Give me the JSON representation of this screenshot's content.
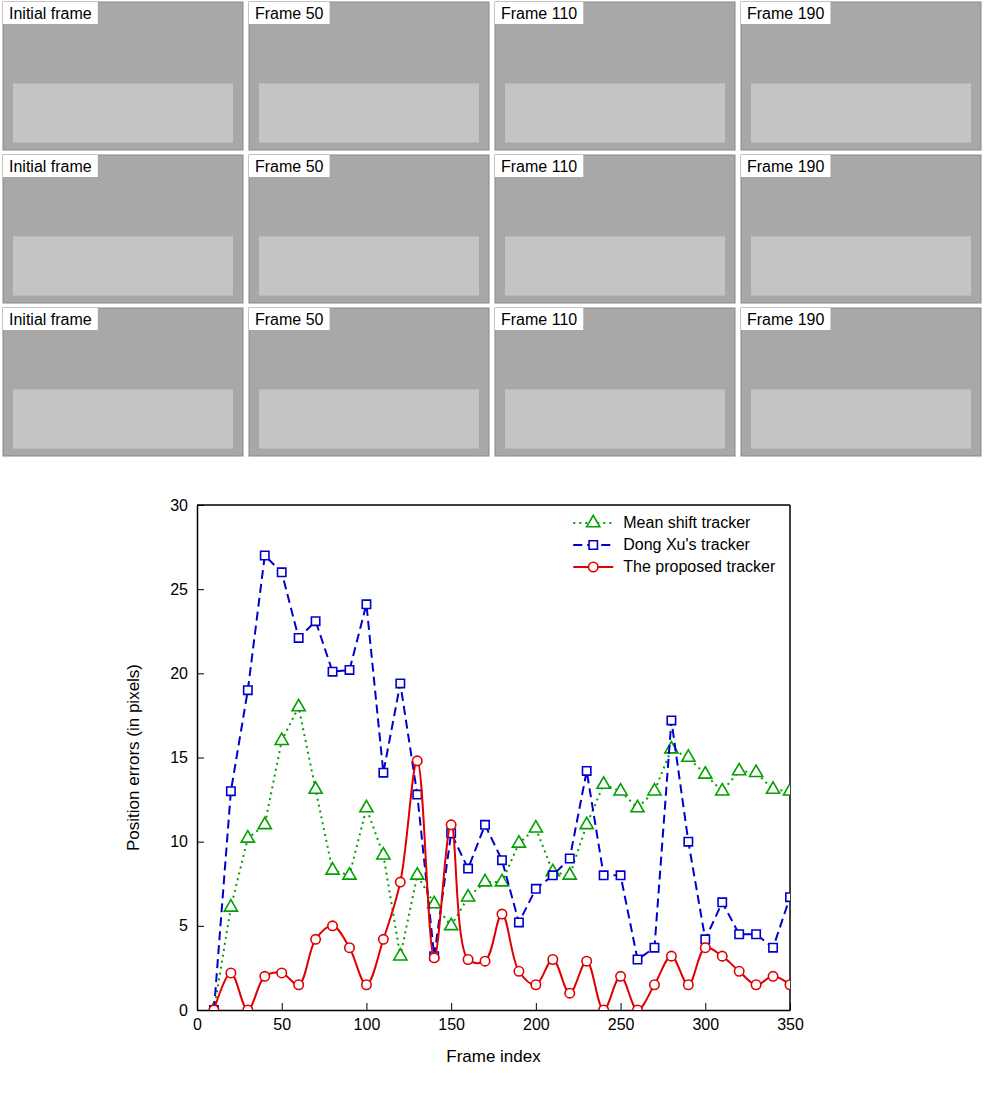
{
  "image_panels": {
    "labels": [
      [
        "Initial frame",
        "Frame 50",
        "Frame 110",
        "Frame 190"
      ],
      [
        "Initial frame",
        "Frame 50",
        "Frame 110",
        "Frame 190"
      ],
      [
        "Initial frame",
        "Frame 50",
        "Frame 110",
        "Frame 190"
      ]
    ]
  },
  "chart_data": {
    "type": "line",
    "xlabel": "Frame index",
    "ylabel": "Position errors (in pixels)",
    "x": [
      10,
      20,
      30,
      40,
      50,
      60,
      70,
      80,
      90,
      100,
      110,
      120,
      130,
      140,
      150,
      160,
      170,
      180,
      190,
      200,
      210,
      220,
      230,
      240,
      250,
      260,
      270,
      280,
      290,
      300,
      310,
      320,
      330,
      340,
      350
    ],
    "xlim": [
      0,
      350
    ],
    "xticks": [
      0,
      50,
      100,
      150,
      200,
      250,
      300,
      350
    ],
    "ylim": [
      0,
      30
    ],
    "yticks": [
      0,
      5,
      10,
      15,
      20,
      25,
      30
    ],
    "legend": "upper right",
    "series": [
      {
        "name": "Mean shift tracker",
        "color": "#00a000",
        "marker": "triangle",
        "line_style": "dotted",
        "values": [
          0,
          6.1,
          10.2,
          11,
          16,
          18,
          13.1,
          8.3,
          8,
          12,
          9.2,
          3.2,
          8,
          6.3,
          5,
          6.7,
          7.6,
          7.6,
          9.9,
          10.8,
          8.2,
          8,
          11,
          13.4,
          13,
          12,
          13,
          15.5,
          15,
          14,
          13,
          14.2,
          14.1,
          13.1,
          13
        ]
      },
      {
        "name": "Dong Xu's tracker",
        "color": "#0000cc",
        "marker": "square",
        "line_style": "dashed",
        "values": [
          0,
          13,
          19,
          27,
          26,
          22.1,
          23.1,
          20.1,
          20.2,
          24.1,
          14.1,
          19.4,
          12.8,
          3.2,
          10.5,
          8.4,
          11,
          8.9,
          5.2,
          7.2,
          8,
          9,
          14.2,
          8,
          8,
          3,
          3.7,
          17.2,
          10,
          4.2,
          6.4,
          4.5,
          4.5,
          3.7,
          6.7
        ]
      },
      {
        "name": "The proposed tracker",
        "color": "#e00000",
        "marker": "circle",
        "line_style": "solid",
        "values": [
          0,
          2.2,
          0,
          2,
          2.2,
          1.5,
          4.2,
          5,
          3.7,
          1.5,
          4.2,
          7.6,
          14.8,
          3.1,
          11,
          3,
          2.9,
          5.7,
          2.3,
          1.5,
          3,
          1,
          2.9,
          0,
          2,
          0,
          1.5,
          3.2,
          1.5,
          3.7,
          3.2,
          2.3,
          1.5,
          2,
          1.5
        ]
      }
    ]
  }
}
